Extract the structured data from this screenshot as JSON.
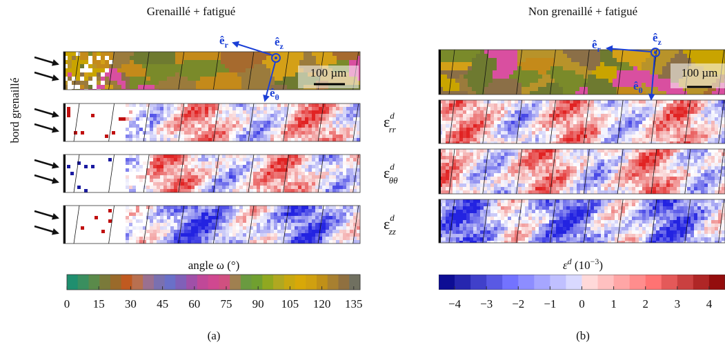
{
  "panels": [
    {
      "title": "Grenaillé + fatigué",
      "caption": "(a)",
      "scale_bar": "100 µm",
      "frame": {
        "z": {
          "base": "ê",
          "sub": "z"
        },
        "r": {
          "base": "ê",
          "sub": "r"
        },
        "t": {
          "base": "ê",
          "sub": "θ"
        }
      },
      "colorbar": {
        "label": "angle ω (°)",
        "range": [
          0,
          138
        ],
        "ticks": [
          0,
          15,
          30,
          45,
          60,
          75,
          90,
          105,
          120,
          135
        ],
        "colors": [
          "#1f8f6f",
          "#3a8f5f",
          "#5a8a4a",
          "#7a7a3a",
          "#9a6a2a",
          "#c05a20",
          "#b87050",
          "#9a7090",
          "#7a70b0",
          "#6a70c8",
          "#8060b8",
          "#a050a8",
          "#c04898",
          "#d04890",
          "#d05080",
          "#a08050",
          "#6a9a40",
          "#70a030",
          "#90a820",
          "#b0a820",
          "#c8a810",
          "#d8a808",
          "#d0a010",
          "#c09018",
          "#a88030",
          "#907040",
          "#707060"
        ]
      }
    },
    {
      "title": "Non grenaillé + fatigué",
      "caption": "(b)",
      "scale_bar": "100 µm",
      "frame": {
        "z": {
          "base": "ê",
          "sub": "z"
        },
        "r": {
          "base": "ê",
          "sub": "r"
        },
        "t": {
          "base": "ê",
          "sub": "θ"
        }
      },
      "colorbar": {
        "label": {
          "symbol": "ε",
          "sup": "d",
          "open": " (10",
          "exp": "−3",
          "close": ")"
        },
        "range": [
          -4.5,
          4.5
        ],
        "ticks": [
          {
            "value": -4,
            "label": "−4"
          },
          {
            "value": -3,
            "label": "−3"
          },
          {
            "value": -2,
            "label": "−2"
          },
          {
            "value": -1,
            "label": "−1"
          },
          0,
          1,
          2,
          3,
          4
        ]
      }
    }
  ],
  "side_label": "bord grenaillé",
  "strain_labels": [
    {
      "symbol": "ε",
      "sup": "d",
      "sub": "rr"
    },
    {
      "symbol": "ε",
      "sup": "d",
      "sub": "θθ"
    },
    {
      "symbol": "ε",
      "sup": "d",
      "sub": "zz"
    }
  ]
}
